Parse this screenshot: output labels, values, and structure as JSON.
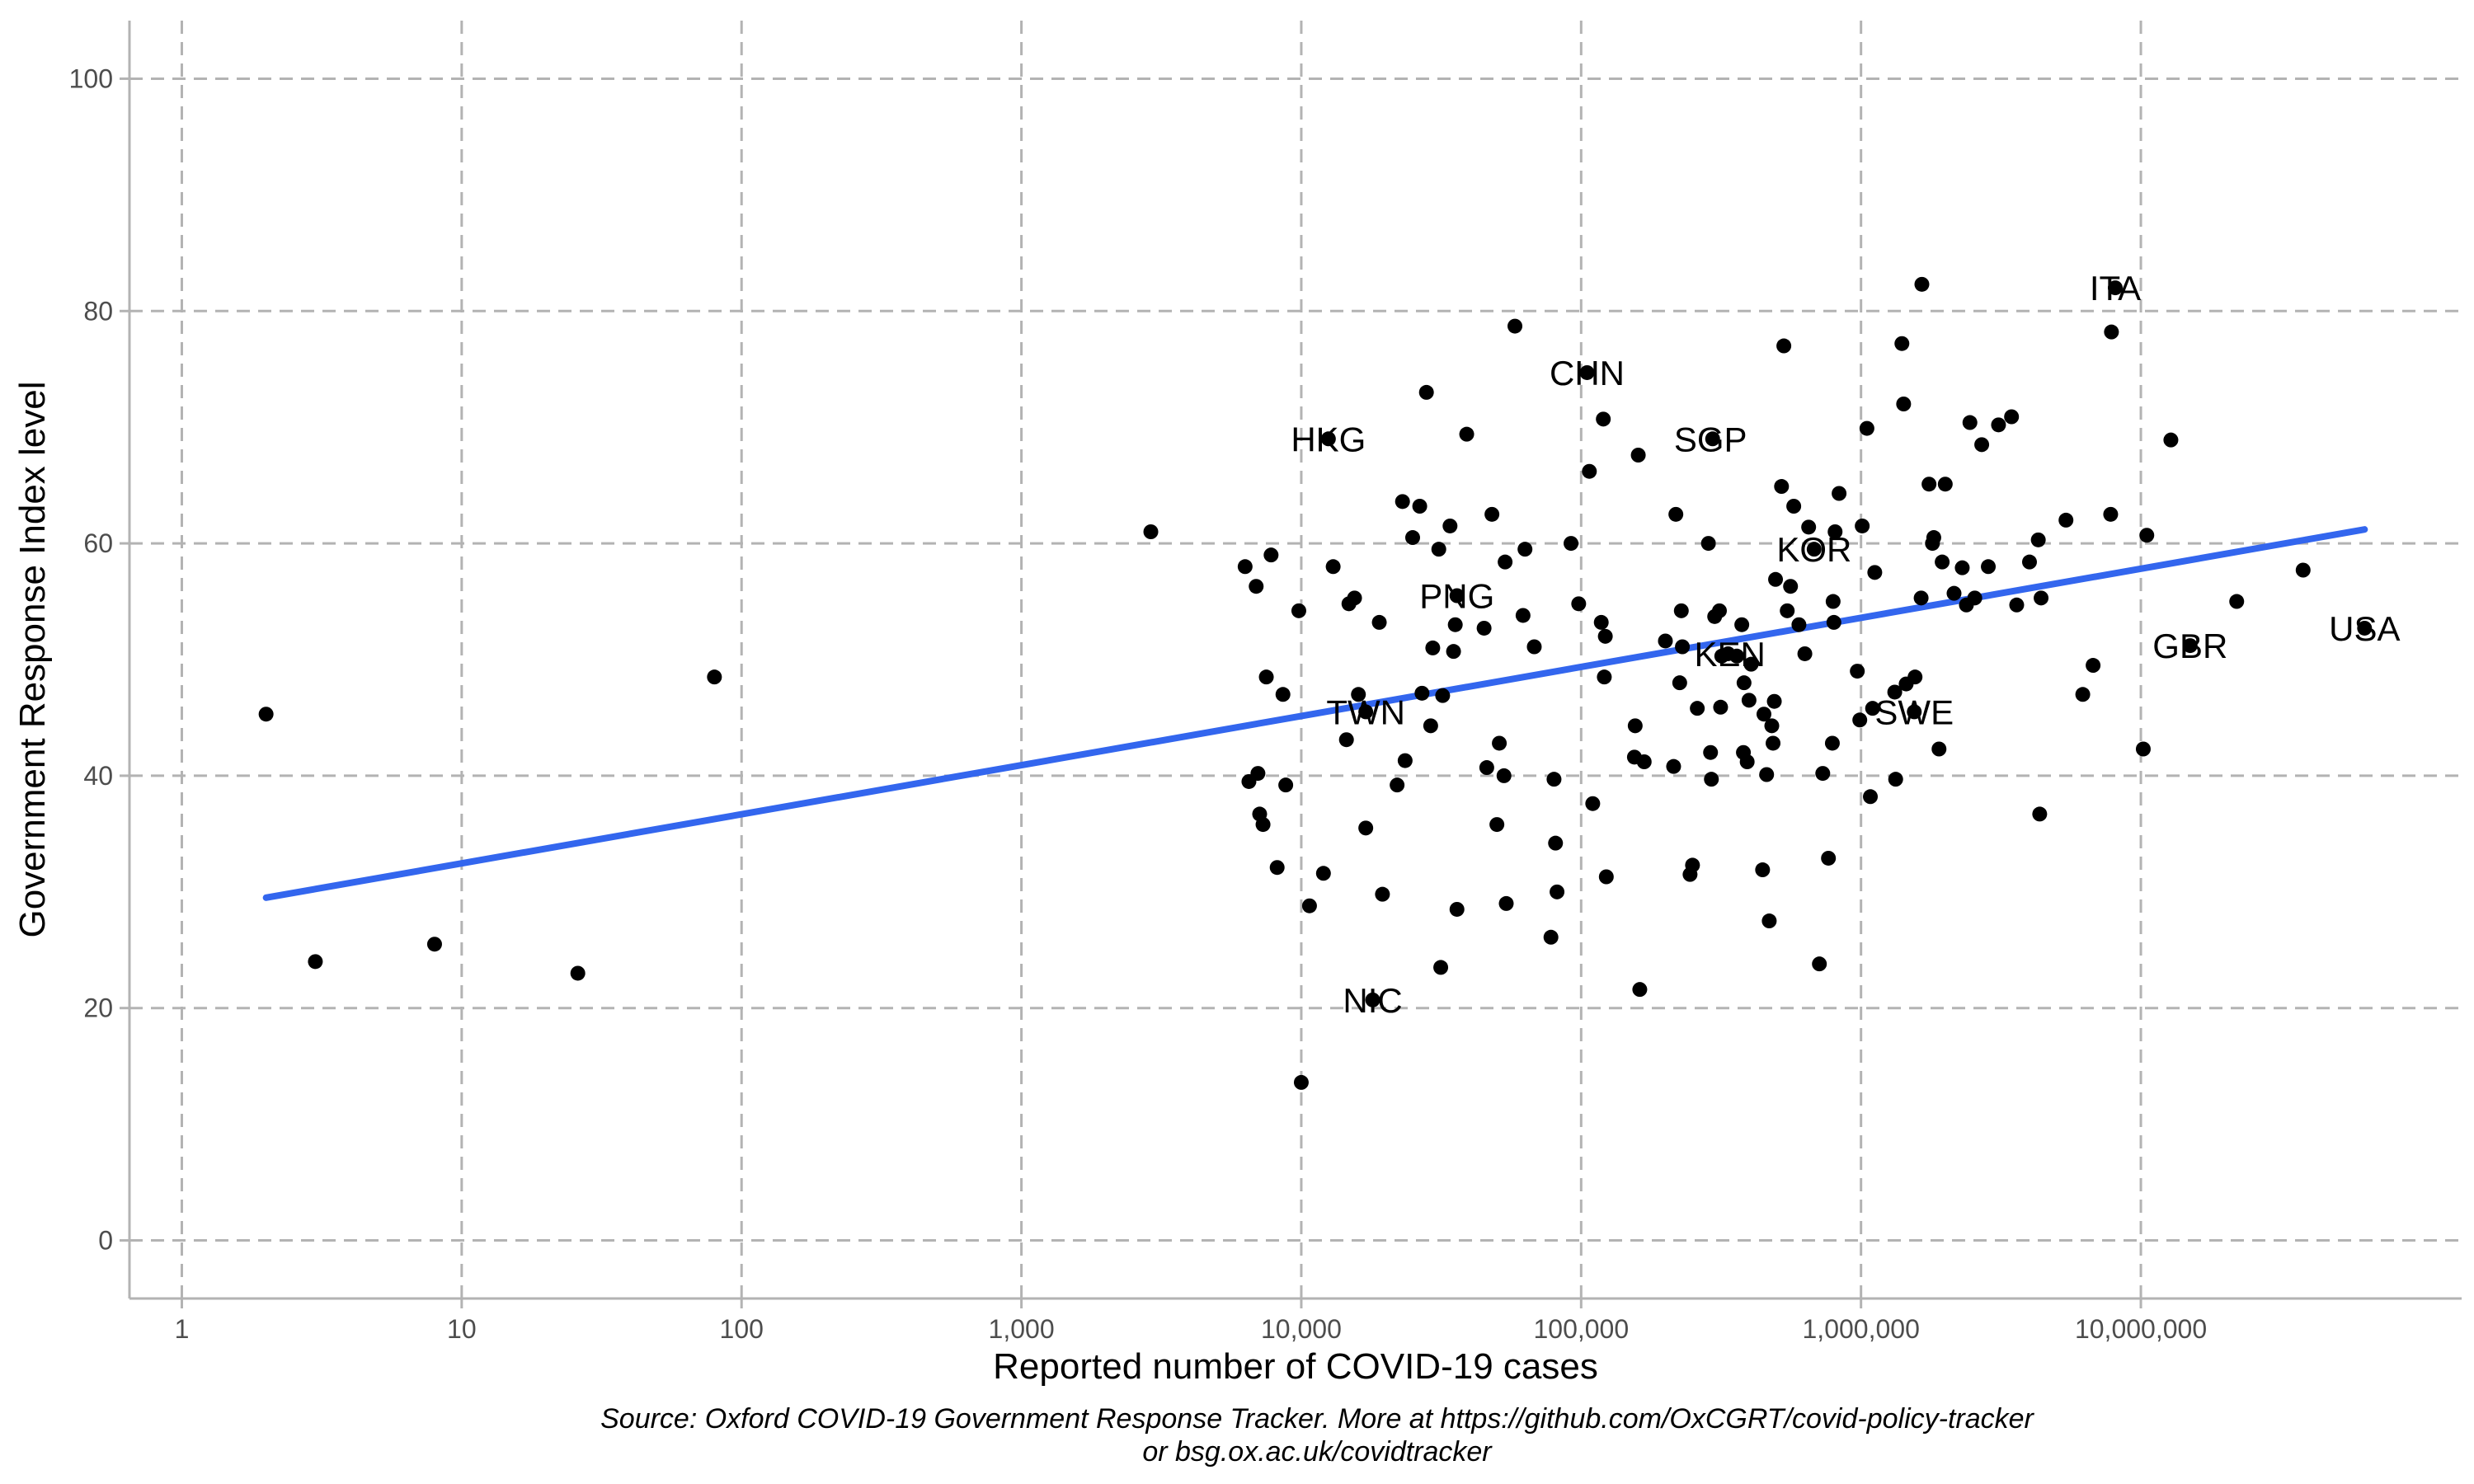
{
  "chart_data": {
    "type": "scatter",
    "x_scale": "log10",
    "xlabel": "Reported number of COVID-19 cases",
    "ylabel": "Government Response Index level",
    "xlim": [
      0.65,
      140000000
    ],
    "ylim": [
      -5,
      105
    ],
    "x_ticks": [
      {
        "value": 1,
        "label": "1"
      },
      {
        "value": 10,
        "label": "10"
      },
      {
        "value": 100,
        "label": "100"
      },
      {
        "value": 1000,
        "label": "1,000"
      },
      {
        "value": 10000,
        "label": "10,000"
      },
      {
        "value": 100000,
        "label": "100,000"
      },
      {
        "value": 1000000,
        "label": "1,000,000"
      },
      {
        "value": 10000000,
        "label": "10,000,000"
      }
    ],
    "y_ticks": [
      {
        "value": 0,
        "label": "0"
      },
      {
        "value": 20,
        "label": "20"
      },
      {
        "value": 40,
        "label": "40"
      },
      {
        "value": 60,
        "label": "60"
      },
      {
        "value": 80,
        "label": "80"
      },
      {
        "value": 100,
        "label": "100"
      }
    ],
    "grid": true,
    "fit_line": {
      "color": "#3366ee",
      "x": [
        2,
        63000000
      ],
      "y": [
        29.5,
        61.2
      ]
    },
    "labeled_points": [
      {
        "label": "ITA",
        "x": 8100000,
        "y": 82
      },
      {
        "label": "CHN",
        "x": 105000,
        "y": 74.7
      },
      {
        "label": "HKG",
        "x": 12500,
        "y": 69
      },
      {
        "label": "SGP",
        "x": 290000,
        "y": 69
      },
      {
        "label": "KOR",
        "x": 680000,
        "y": 59.5
      },
      {
        "label": "PNG",
        "x": 36000,
        "y": 55.5
      },
      {
        "label": "GBR",
        "x": 15000000,
        "y": 51.2
      },
      {
        "label": "USA",
        "x": 63000000,
        "y": 52.7
      },
      {
        "label": "KEN",
        "x": 340000,
        "y": 50.5
      },
      {
        "label": "TWN",
        "x": 17000,
        "y": 45.5
      },
      {
        "label": "SWE",
        "x": 1550000,
        "y": 45.5
      },
      {
        "label": "NIC",
        "x": 18000,
        "y": 20.7
      }
    ],
    "points": [
      [
        2,
        45.3
      ],
      [
        3,
        24
      ],
      [
        8,
        25.5
      ],
      [
        26,
        23
      ],
      [
        80,
        48.5
      ],
      [
        2900,
        61
      ],
      [
        6300,
        58
      ],
      [
        6500,
        39.5
      ],
      [
        6900,
        56.3
      ],
      [
        7000,
        40.2
      ],
      [
        7100,
        36.7
      ],
      [
        7300,
        35.8
      ],
      [
        7500,
        48.5
      ],
      [
        7800,
        59
      ],
      [
        8200,
        32.1
      ],
      [
        8600,
        47
      ],
      [
        8800,
        39.2
      ],
      [
        9800,
        54.2
      ],
      [
        10000,
        13.6
      ],
      [
        10700,
        28.8
      ],
      [
        12000,
        31.6
      ],
      [
        12500,
        69
      ],
      [
        13000,
        58
      ],
      [
        14500,
        43.1
      ],
      [
        14800,
        54.8
      ],
      [
        15500,
        55.3
      ],
      [
        16000,
        47
      ],
      [
        17000,
        35.5
      ],
      [
        17000,
        45.5
      ],
      [
        18000,
        20.7
      ],
      [
        19000,
        53.2
      ],
      [
        19500,
        29.8
      ],
      [
        22000,
        39.2
      ],
      [
        23000,
        63.6
      ],
      [
        23500,
        41.3
      ],
      [
        25000,
        60.5
      ],
      [
        26500,
        63.2
      ],
      [
        27000,
        47.1
      ],
      [
        28000,
        73
      ],
      [
        29000,
        44.3
      ],
      [
        29500,
        51
      ],
      [
        31000,
        59.5
      ],
      [
        31500,
        23.5
      ],
      [
        32000,
        46.9
      ],
      [
        34000,
        61.5
      ],
      [
        35000,
        50.7
      ],
      [
        35500,
        53
      ],
      [
        36000,
        28.5
      ],
      [
        36000,
        55.5
      ],
      [
        39000,
        69.4
      ],
      [
        45000,
        52.7
      ],
      [
        46000,
        40.7
      ],
      [
        48000,
        62.5
      ],
      [
        50000,
        35.8
      ],
      [
        51000,
        42.8
      ],
      [
        53000,
        40
      ],
      [
        53500,
        58.4
      ],
      [
        54000,
        29
      ],
      [
        58000,
        78.7
      ],
      [
        62000,
        53.8
      ],
      [
        63000,
        59.5
      ],
      [
        68000,
        51.1
      ],
      [
        78000,
        26.1
      ],
      [
        80000,
        39.7
      ],
      [
        81000,
        34.2
      ],
      [
        82000,
        30
      ],
      [
        92000,
        60
      ],
      [
        98000,
        54.8
      ],
      [
        105000,
        74.7
      ],
      [
        107000,
        66.2
      ],
      [
        110000,
        37.6
      ],
      [
        118000,
        53.2
      ],
      [
        120000,
        70.7
      ],
      [
        121000,
        48.5
      ],
      [
        122000,
        52
      ],
      [
        123000,
        31.3
      ],
      [
        155000,
        41.6
      ],
      [
        156000,
        44.3
      ],
      [
        160000,
        67.6
      ],
      [
        162000,
        21.6
      ],
      [
        168000,
        41.2
      ],
      [
        200000,
        51.6
      ],
      [
        214000,
        40.8
      ],
      [
        218000,
        62.5
      ],
      [
        225000,
        48
      ],
      [
        228000,
        54.2
      ],
      [
        230000,
        51.1
      ],
      [
        245000,
        31.5
      ],
      [
        250000,
        32.3
      ],
      [
        260000,
        45.8
      ],
      [
        285000,
        60
      ],
      [
        290000,
        42
      ],
      [
        292000,
        39.7
      ],
      [
        295000,
        69
      ],
      [
        300000,
        53.7
      ],
      [
        312000,
        54.2
      ],
      [
        315000,
        45.9
      ],
      [
        318000,
        50.3
      ],
      [
        335000,
        50.5
      ],
      [
        360000,
        50.3
      ],
      [
        375000,
        53
      ],
      [
        380000,
        42
      ],
      [
        382000,
        48
      ],
      [
        392000,
        41.2
      ],
      [
        398000,
        46.5
      ],
      [
        405000,
        49.6
      ],
      [
        445000,
        31.9
      ],
      [
        450000,
        45.3
      ],
      [
        460000,
        40.1
      ],
      [
        470000,
        27.5
      ],
      [
        480000,
        44.3
      ],
      [
        485000,
        42.8
      ],
      [
        490000,
        46.4
      ],
      [
        495000,
        56.9
      ],
      [
        520000,
        64.9
      ],
      [
        530000,
        77
      ],
      [
        545000,
        54.2
      ],
      [
        560000,
        56.3
      ],
      [
        575000,
        63.2
      ],
      [
        600000,
        53
      ],
      [
        630000,
        50.5
      ],
      [
        650000,
        61.4
      ],
      [
        680000,
        59.5
      ],
      [
        710000,
        23.8
      ],
      [
        730000,
        40.2
      ],
      [
        765000,
        32.9
      ],
      [
        790000,
        42.8
      ],
      [
        795000,
        55
      ],
      [
        800000,
        53.2
      ],
      [
        808000,
        61
      ],
      [
        835000,
        64.3
      ],
      [
        970000,
        49
      ],
      [
        990000,
        44.8
      ],
      [
        1010000,
        61.5
      ],
      [
        1050000,
        69.9
      ],
      [
        1080000,
        38.2
      ],
      [
        1100000,
        45.8
      ],
      [
        1120000,
        57.5
      ],
      [
        1320000,
        47.2
      ],
      [
        1330000,
        39.7
      ],
      [
        1400000,
        77.2
      ],
      [
        1420000,
        72
      ],
      [
        1450000,
        47.9
      ],
      [
        1550000,
        45.5
      ],
      [
        1560000,
        48.5
      ],
      [
        1640000,
        55.3
      ],
      [
        1650000,
        82.3
      ],
      [
        1750000,
        65.1
      ],
      [
        1800000,
        60
      ],
      [
        1820000,
        60.5
      ],
      [
        1900000,
        42.3
      ],
      [
        1950000,
        58.4
      ],
      [
        2000000,
        65.1
      ],
      [
        2150000,
        55.7
      ],
      [
        2300000,
        57.9
      ],
      [
        2380000,
        54.7
      ],
      [
        2450000,
        70.4
      ],
      [
        2550000,
        55.3
      ],
      [
        2700000,
        68.5
      ],
      [
        2850000,
        58
      ],
      [
        3100000,
        70.2
      ],
      [
        3450000,
        70.9
      ],
      [
        3600000,
        54.7
      ],
      [
        4000000,
        58.4
      ],
      [
        4300000,
        60.3
      ],
      [
        4350000,
        36.7
      ],
      [
        4400000,
        55.3
      ],
      [
        5400000,
        62
      ],
      [
        6200000,
        47
      ],
      [
        6750000,
        49.5
      ],
      [
        7800000,
        62.5
      ],
      [
        7850000,
        78.2
      ],
      [
        8100000,
        82
      ],
      [
        10200000,
        42.3
      ],
      [
        10500000,
        60.7
      ],
      [
        12800000,
        68.9
      ],
      [
        15000000,
        51.2
      ],
      [
        22000000,
        55
      ],
      [
        38000000,
        57.7
      ],
      [
        63000000,
        52.7
      ]
    ]
  },
  "caption": {
    "line1": "Source: Oxford COVID-19 Government Response Tracker. More at https://github.com/OxCGRT/covid-policy-tracker",
    "line2": "or bsg.ox.ac.uk/covidtracker"
  }
}
